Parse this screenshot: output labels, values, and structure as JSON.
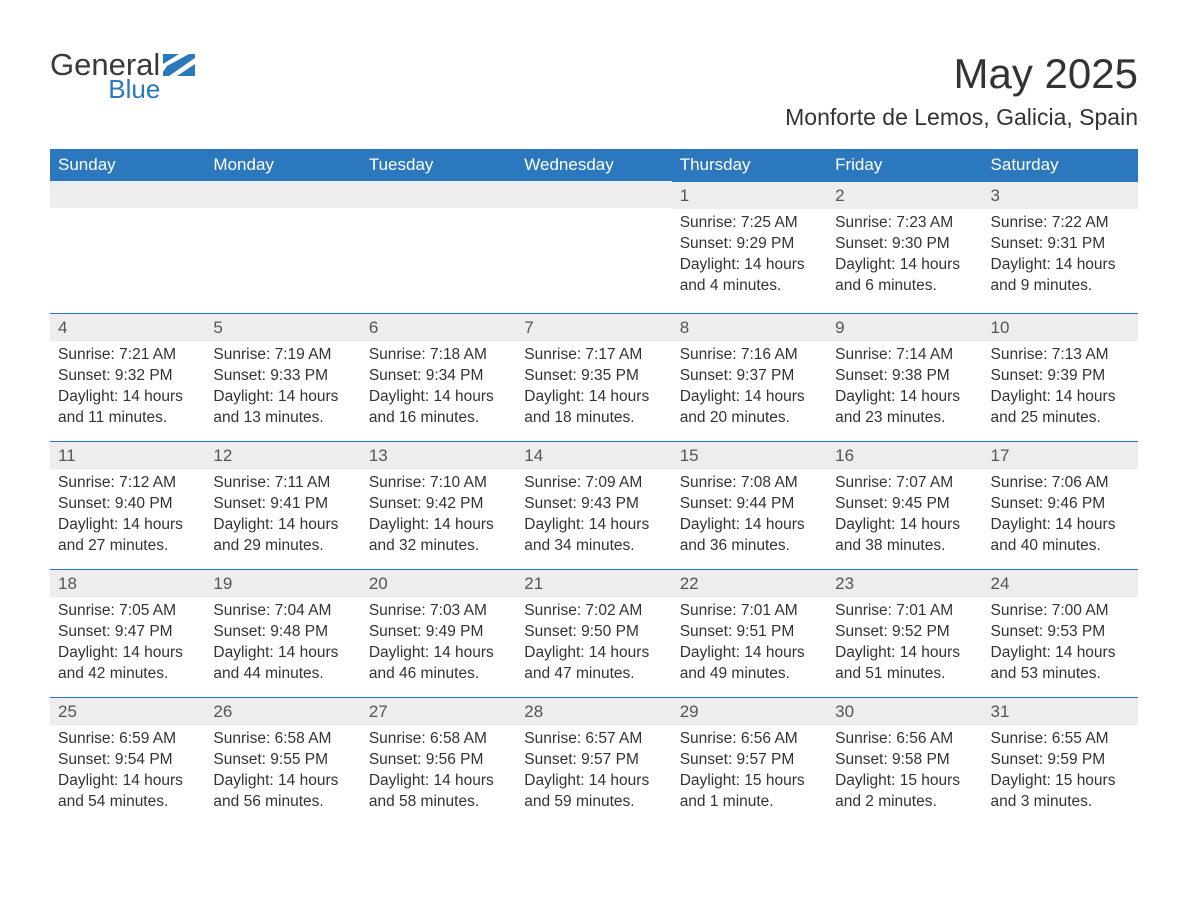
{
  "brand": {
    "line1": "General",
    "line2": "Blue"
  },
  "title": "May 2025",
  "location": "Monforte de Lemos, Galicia, Spain",
  "colors": {
    "header_bg": "#2b78bf",
    "header_text": "#ffffff",
    "daynum_bg": "#ededed",
    "daynum_border": "#2b78bf",
    "body_text": "#333333",
    "background": "#ffffff",
    "logo_accent": "#2b78bf"
  },
  "days_of_week": [
    "Sunday",
    "Monday",
    "Tuesday",
    "Wednesday",
    "Thursday",
    "Friday",
    "Saturday"
  ],
  "weeks": [
    [
      null,
      null,
      null,
      null,
      {
        "n": "1",
        "sunrise": "7:25 AM",
        "sunset": "9:29 PM",
        "daylight": "14 hours and 4 minutes."
      },
      {
        "n": "2",
        "sunrise": "7:23 AM",
        "sunset": "9:30 PM",
        "daylight": "14 hours and 6 minutes."
      },
      {
        "n": "3",
        "sunrise": "7:22 AM",
        "sunset": "9:31 PM",
        "daylight": "14 hours and 9 minutes."
      }
    ],
    [
      {
        "n": "4",
        "sunrise": "7:21 AM",
        "sunset": "9:32 PM",
        "daylight": "14 hours and 11 minutes."
      },
      {
        "n": "5",
        "sunrise": "7:19 AM",
        "sunset": "9:33 PM",
        "daylight": "14 hours and 13 minutes."
      },
      {
        "n": "6",
        "sunrise": "7:18 AM",
        "sunset": "9:34 PM",
        "daylight": "14 hours and 16 minutes."
      },
      {
        "n": "7",
        "sunrise": "7:17 AM",
        "sunset": "9:35 PM",
        "daylight": "14 hours and 18 minutes."
      },
      {
        "n": "8",
        "sunrise": "7:16 AM",
        "sunset": "9:37 PM",
        "daylight": "14 hours and 20 minutes."
      },
      {
        "n": "9",
        "sunrise": "7:14 AM",
        "sunset": "9:38 PM",
        "daylight": "14 hours and 23 minutes."
      },
      {
        "n": "10",
        "sunrise": "7:13 AM",
        "sunset": "9:39 PM",
        "daylight": "14 hours and 25 minutes."
      }
    ],
    [
      {
        "n": "11",
        "sunrise": "7:12 AM",
        "sunset": "9:40 PM",
        "daylight": "14 hours and 27 minutes."
      },
      {
        "n": "12",
        "sunrise": "7:11 AM",
        "sunset": "9:41 PM",
        "daylight": "14 hours and 29 minutes."
      },
      {
        "n": "13",
        "sunrise": "7:10 AM",
        "sunset": "9:42 PM",
        "daylight": "14 hours and 32 minutes."
      },
      {
        "n": "14",
        "sunrise": "7:09 AM",
        "sunset": "9:43 PM",
        "daylight": "14 hours and 34 minutes."
      },
      {
        "n": "15",
        "sunrise": "7:08 AM",
        "sunset": "9:44 PM",
        "daylight": "14 hours and 36 minutes."
      },
      {
        "n": "16",
        "sunrise": "7:07 AM",
        "sunset": "9:45 PM",
        "daylight": "14 hours and 38 minutes."
      },
      {
        "n": "17",
        "sunrise": "7:06 AM",
        "sunset": "9:46 PM",
        "daylight": "14 hours and 40 minutes."
      }
    ],
    [
      {
        "n": "18",
        "sunrise": "7:05 AM",
        "sunset": "9:47 PM",
        "daylight": "14 hours and 42 minutes."
      },
      {
        "n": "19",
        "sunrise": "7:04 AM",
        "sunset": "9:48 PM",
        "daylight": "14 hours and 44 minutes."
      },
      {
        "n": "20",
        "sunrise": "7:03 AM",
        "sunset": "9:49 PM",
        "daylight": "14 hours and 46 minutes."
      },
      {
        "n": "21",
        "sunrise": "7:02 AM",
        "sunset": "9:50 PM",
        "daylight": "14 hours and 47 minutes."
      },
      {
        "n": "22",
        "sunrise": "7:01 AM",
        "sunset": "9:51 PM",
        "daylight": "14 hours and 49 minutes."
      },
      {
        "n": "23",
        "sunrise": "7:01 AM",
        "sunset": "9:52 PM",
        "daylight": "14 hours and 51 minutes."
      },
      {
        "n": "24",
        "sunrise": "7:00 AM",
        "sunset": "9:53 PM",
        "daylight": "14 hours and 53 minutes."
      }
    ],
    [
      {
        "n": "25",
        "sunrise": "6:59 AM",
        "sunset": "9:54 PM",
        "daylight": "14 hours and 54 minutes."
      },
      {
        "n": "26",
        "sunrise": "6:58 AM",
        "sunset": "9:55 PM",
        "daylight": "14 hours and 56 minutes."
      },
      {
        "n": "27",
        "sunrise": "6:58 AM",
        "sunset": "9:56 PM",
        "daylight": "14 hours and 58 minutes."
      },
      {
        "n": "28",
        "sunrise": "6:57 AM",
        "sunset": "9:57 PM",
        "daylight": "14 hours and 59 minutes."
      },
      {
        "n": "29",
        "sunrise": "6:56 AM",
        "sunset": "9:57 PM",
        "daylight": "15 hours and 1 minute."
      },
      {
        "n": "30",
        "sunrise": "6:56 AM",
        "sunset": "9:58 PM",
        "daylight": "15 hours and 2 minutes."
      },
      {
        "n": "31",
        "sunrise": "6:55 AM",
        "sunset": "9:59 PM",
        "daylight": "15 hours and 3 minutes."
      }
    ]
  ],
  "labels": {
    "sunrise": "Sunrise: ",
    "sunset": "Sunset: ",
    "daylight": "Daylight: "
  }
}
